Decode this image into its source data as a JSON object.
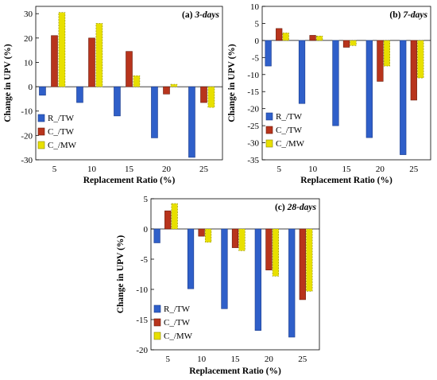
{
  "chart_data": [
    {
      "type": "bar",
      "panel_label": "(a)",
      "panel_age": "3-days",
      "xlabel": "Replacement Ratio (%)",
      "ylabel": "Change in UPV (%)",
      "categories": [
        "5",
        "10",
        "15",
        "20",
        "25"
      ],
      "ylim": [
        -30,
        33
      ],
      "yticks": [
        -30,
        -20,
        -10,
        0,
        10,
        20,
        30
      ],
      "grid": false,
      "legend_position": "bottom-left",
      "series": [
        {
          "name": "R_/TW",
          "values": [
            -3.5,
            -6.5,
            -12,
            -21,
            -29
          ]
        },
        {
          "name": "C_/TW",
          "values": [
            21,
            20,
            14.5,
            -3,
            -6.5
          ]
        },
        {
          "name": "C_/MW",
          "values": [
            30.5,
            26,
            4.5,
            1,
            -8.5
          ]
        }
      ]
    },
    {
      "type": "bar",
      "panel_label": "(b)",
      "panel_age": "7-days",
      "xlabel": "Replacement Ratio (%)",
      "ylabel": "Change in UPV (%)",
      "categories": [
        "5",
        "10",
        "15",
        "20",
        "25"
      ],
      "ylim": [
        -35,
        10
      ],
      "yticks": [
        -35,
        -30,
        -25,
        -20,
        -15,
        -10,
        -5,
        0,
        5,
        10
      ],
      "grid": false,
      "legend_position": "bottom-left",
      "series": [
        {
          "name": "R_/TW",
          "values": [
            -7.5,
            -18.5,
            -25,
            -28.5,
            -33.5
          ]
        },
        {
          "name": "C_/TW",
          "values": [
            3.5,
            1.5,
            -2,
            -12,
            -17.5
          ]
        },
        {
          "name": "C_/MW",
          "values": [
            2.2,
            1.3,
            -1.5,
            -7.5,
            -11
          ]
        }
      ]
    },
    {
      "type": "bar",
      "panel_label": "(c)",
      "panel_age": "28-days",
      "xlabel": "Replacement Ratio (%)",
      "ylabel": "Change in UPV (%)",
      "categories": [
        "5",
        "10",
        "15",
        "20",
        "25"
      ],
      "ylim": [
        -20,
        5
      ],
      "yticks": [
        -20,
        -15,
        -10,
        -5,
        0,
        5
      ],
      "grid": false,
      "legend_position": "bottom-left",
      "series": [
        {
          "name": "R_/TW",
          "values": [
            -2.3,
            -9.9,
            -13.2,
            -16.8,
            -17.9
          ]
        },
        {
          "name": "C_/TW",
          "values": [
            3,
            -1.2,
            -3.1,
            -6.8,
            -11.7
          ]
        },
        {
          "name": "C_/MW",
          "values": [
            4.2,
            -2.2,
            -3.6,
            -7.8,
            -10.3
          ]
        }
      ]
    }
  ],
  "series_colors": [
    "#2f5fc9",
    "#b8341c",
    "#e8e000"
  ],
  "series_edge_colors": [
    "#1a3a8a",
    "#6a1a0a",
    "#8a8600"
  ]
}
